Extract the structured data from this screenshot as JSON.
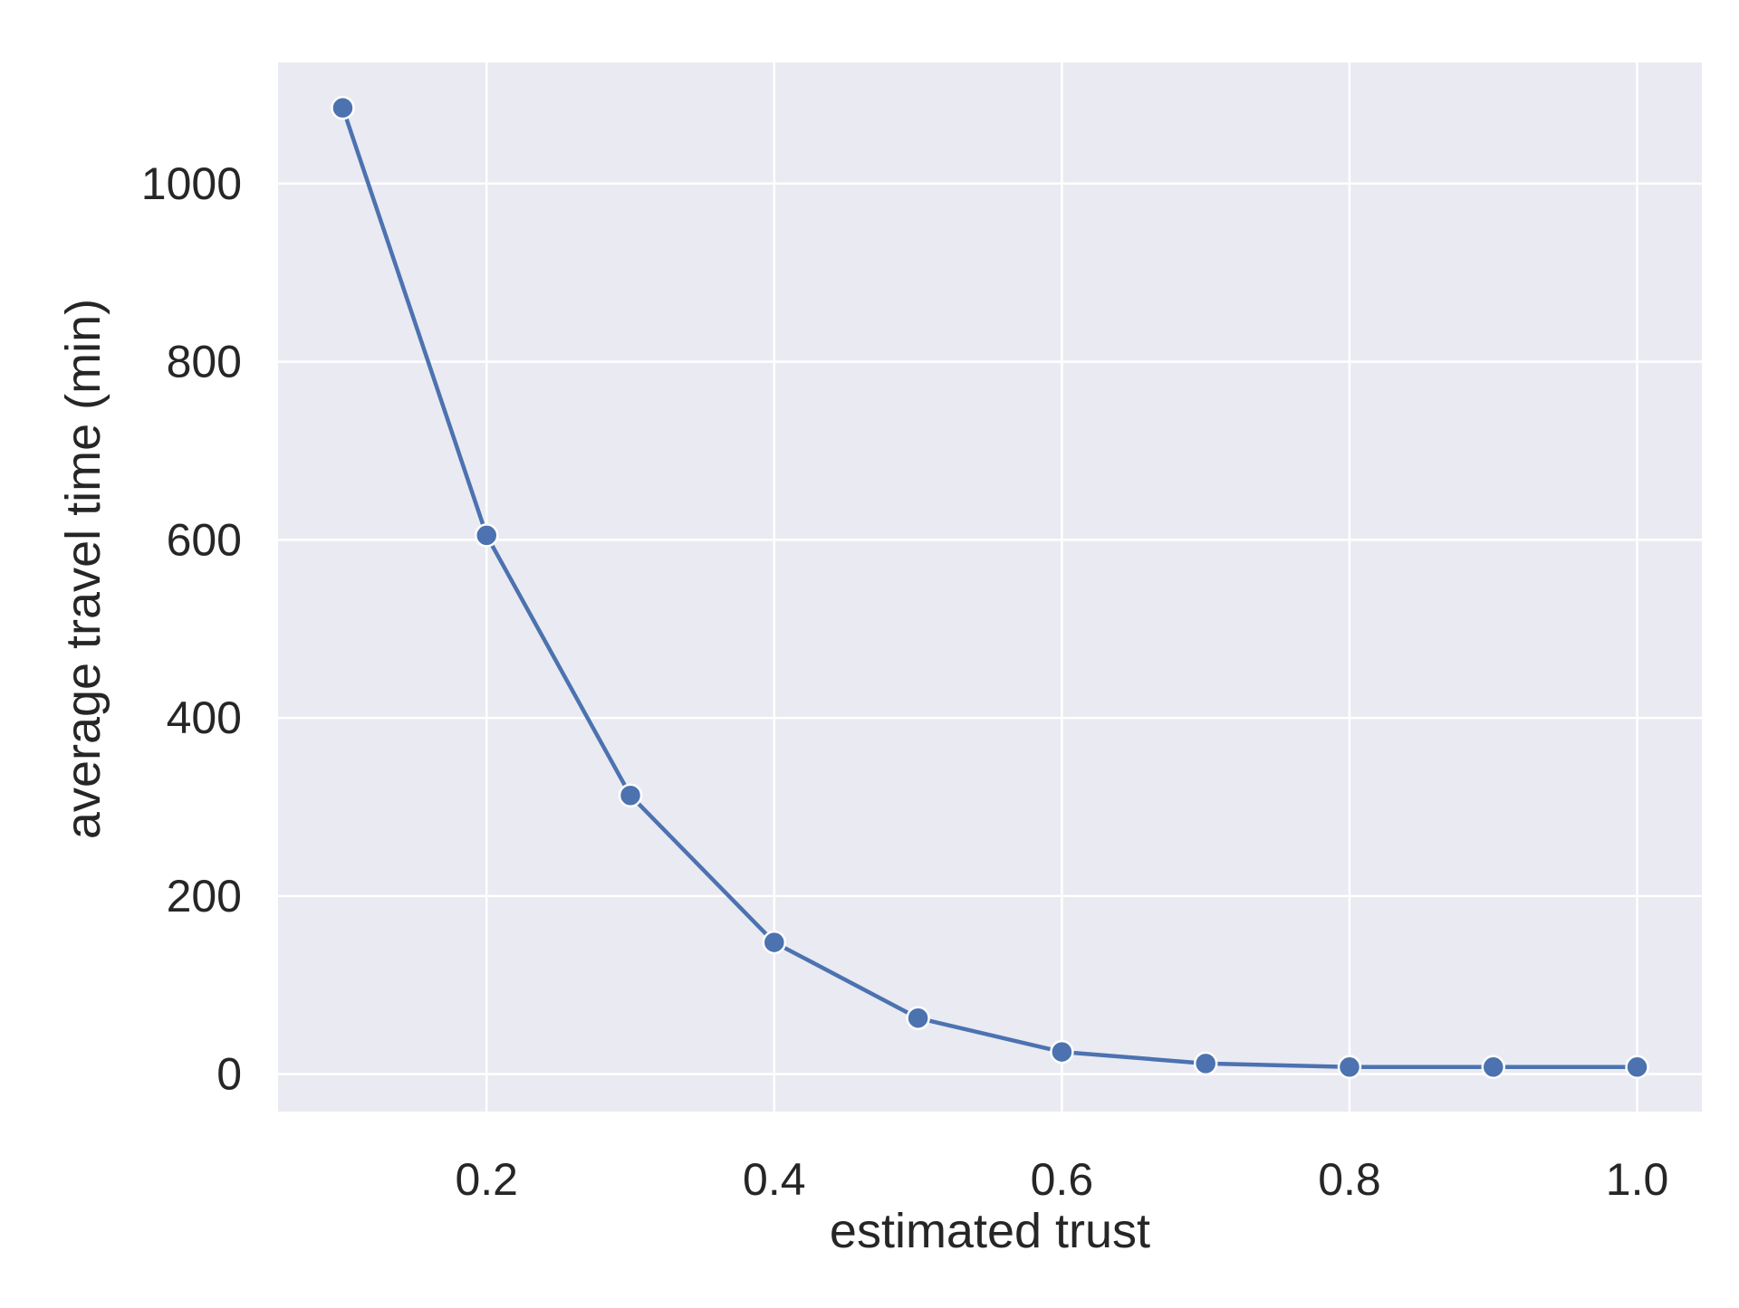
{
  "chart_data": {
    "type": "line",
    "title": "",
    "xlabel": "estimated trust",
    "ylabel": "average travel time (min)",
    "x": [
      0.1,
      0.2,
      0.3,
      0.4,
      0.5,
      0.6,
      0.7,
      0.8,
      0.9,
      1.0
    ],
    "series": [
      {
        "values": [
          1085,
          605,
          313,
          148,
          63,
          25,
          12,
          8,
          8,
          8
        ],
        "color": "#4c72b0",
        "marker": "circle"
      }
    ],
    "xlim": [
      0.055,
      1.045
    ],
    "ylim": [
      -42,
      1136
    ],
    "xticks": [
      0.2,
      0.4,
      0.6,
      0.8,
      1.0
    ],
    "xtick_labels": [
      "0.2",
      "0.4",
      "0.6",
      "0.8",
      "1.0"
    ],
    "yticks": [
      0,
      200,
      400,
      600,
      800,
      1000
    ],
    "ytick_labels": [
      "0",
      "200",
      "400",
      "600",
      "800",
      "1000"
    ],
    "grid": true,
    "legend": "none",
    "style": {
      "plot_background": "#eaeaf2",
      "grid_color": "#ffffff",
      "text_color": "#262626"
    }
  }
}
